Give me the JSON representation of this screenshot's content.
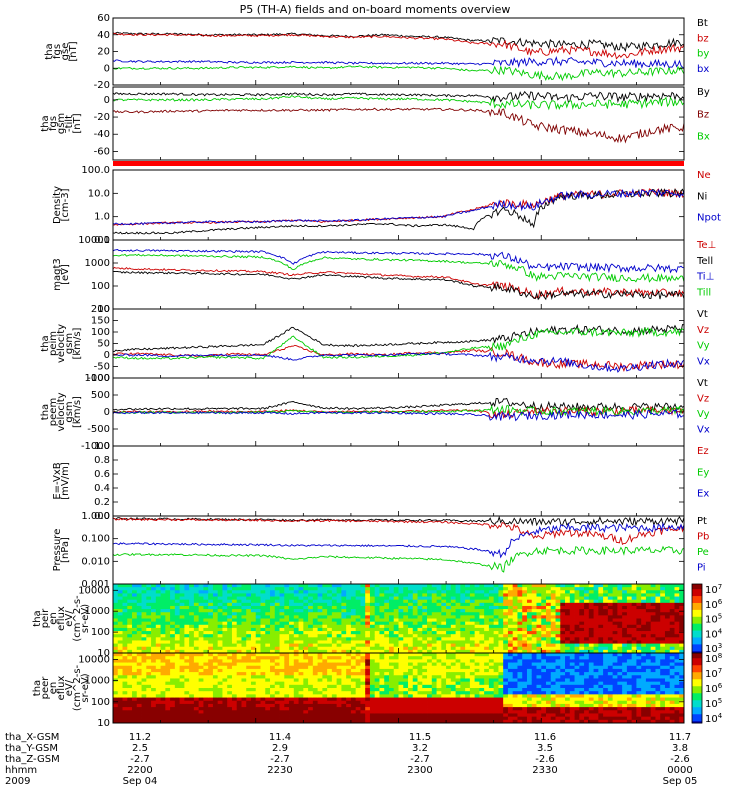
{
  "title": "P5 (TH-A) fields and on-board moments overview",
  "chart_data": [
    {
      "type": "line",
      "ylabel": [
        "tha",
        "fgs",
        "gse",
        "[nT]"
      ],
      "ylim": [
        -20,
        60
      ],
      "ticks": [
        "60",
        "40",
        "20",
        "0",
        "-20"
      ],
      "tick_values": [
        60,
        40,
        20,
        0,
        -20
      ],
      "series": [
        {
          "name": "Bt",
          "color": "#000000",
          "values": [
            42,
            41,
            41,
            40,
            40,
            40,
            41,
            39,
            38,
            40,
            38,
            37,
            33,
            33,
            30,
            28,
            29,
            25,
            28,
            32
          ]
        },
        {
          "name": "bz",
          "color": "#cc0000",
          "values": [
            41,
            40,
            40,
            39,
            39,
            39,
            40,
            38,
            37,
            38,
            36,
            35,
            30,
            29,
            18,
            22,
            20,
            15,
            22,
            25
          ]
        },
        {
          "name": "by",
          "color": "#00cc00",
          "values": [
            0,
            0,
            0,
            0,
            1,
            1,
            2,
            0,
            2,
            1,
            1,
            0,
            -3,
            -2,
            -8,
            -10,
            -5,
            -6,
            -4,
            -2
          ]
        },
        {
          "name": "bx",
          "color": "#0000cc",
          "values": [
            9,
            8,
            8,
            8,
            7,
            7,
            7,
            7,
            6,
            6,
            6,
            6,
            5,
            6,
            8,
            8,
            7,
            6,
            5,
            5
          ]
        }
      ]
    },
    {
      "type": "line",
      "ylabel": [
        "tha",
        "fgs",
        "gsm",
        "-tilt",
        "[nT]"
      ],
      "ylim": [
        -70,
        15
      ],
      "ticks": [
        "0",
        "-20",
        "-40",
        "-60"
      ],
      "tick_values": [
        0,
        -20,
        -40,
        -60
      ],
      "series": [
        {
          "name": "By",
          "color": "#000000",
          "values": [
            7,
            7,
            7,
            6,
            6,
            6,
            7,
            6,
            7,
            6,
            6,
            5,
            5,
            3,
            5,
            2,
            5,
            3,
            5,
            5
          ]
        },
        {
          "name": "Bz",
          "color": "#800000",
          "values": [
            -14,
            -14,
            -13,
            -13,
            -12,
            -12,
            -12,
            -12,
            -11,
            -11,
            -11,
            -11,
            -12,
            -15,
            -30,
            -35,
            -40,
            -45,
            -35,
            -32
          ]
        },
        {
          "name": "Bx",
          "color": "#00cc00",
          "values": [
            0,
            0,
            0,
            0,
            1,
            1,
            4,
            1,
            2,
            1,
            1,
            0,
            -2,
            -5,
            -6,
            -6,
            -5,
            -5,
            -3,
            -2
          ]
        }
      ]
    },
    {
      "type": "line",
      "ylabel": [
        "Density",
        "[cm-3]"
      ],
      "log": true,
      "ylim": [
        0.1,
        100
      ],
      "ticks": [
        "100.0",
        "10.0",
        "1.0",
        "0.1"
      ],
      "tick_values": [
        100,
        10,
        1,
        0.1
      ],
      "series": [
        {
          "name": "Ne",
          "color": "#cc0000",
          "values": [
            0.45,
            0.5,
            0.55,
            0.55,
            0.6,
            0.6,
            0.7,
            0.6,
            0.7,
            0.8,
            0.9,
            1.0,
            2.0,
            4.0,
            3.0,
            8,
            9,
            10,
            11,
            10
          ]
        },
        {
          "name": "Ni",
          "color": "#000000",
          "values": [
            0.2,
            0.2,
            0.2,
            0.25,
            0.3,
            0.35,
            0.4,
            0.4,
            0.45,
            0.5,
            0.4,
            0.45,
            0.3,
            2.0,
            0.3,
            8,
            8,
            9,
            10,
            10
          ]
        },
        {
          "name": "Npot",
          "color": "#0000cc",
          "values": [
            0.5,
            0.5,
            0.55,
            0.6,
            0.6,
            0.6,
            0.7,
            0.65,
            0.7,
            0.8,
            0.9,
            1.0,
            1.8,
            3.5,
            2.5,
            8,
            9,
            10,
            11,
            10
          ]
        }
      ]
    },
    {
      "type": "line",
      "ylabel": [
        "magt3",
        "[eV]"
      ],
      "log": true,
      "ylim": [
        10,
        10000
      ],
      "ticks": [
        "10000",
        "1000",
        "100",
        "10"
      ],
      "tick_values": [
        10000,
        1000,
        100,
        10
      ],
      "series": [
        {
          "name": "Te⊥",
          "color": "#cc0000",
          "values": [
            600,
            550,
            500,
            480,
            450,
            420,
            300,
            400,
            350,
            300,
            260,
            250,
            120,
            100,
            40,
            60,
            55,
            55,
            50,
            50
          ]
        },
        {
          "name": "Tell",
          "color": "#000000",
          "values": [
            400,
            380,
            370,
            350,
            330,
            320,
            200,
            300,
            260,
            220,
            200,
            190,
            100,
            80,
            35,
            45,
            45,
            45,
            40,
            40
          ]
        },
        {
          "name": "Ti⊥",
          "color": "#0000cc",
          "values": [
            3500,
            3500,
            3400,
            3300,
            3200,
            3100,
            900,
            3000,
            2800,
            2700,
            2600,
            2500,
            2500,
            2000,
            600,
            700,
            650,
            600,
            600,
            550
          ]
        },
        {
          "name": "Till",
          "color": "#00cc00",
          "values": [
            2200,
            2200,
            2100,
            2000,
            1900,
            1800,
            500,
            1700,
            1500,
            1400,
            1300,
            1200,
            1000,
            900,
            250,
            280,
            250,
            230,
            220,
            200
          ]
        }
      ]
    },
    {
      "type": "line",
      "ylabel": [
        "tha",
        "peim",
        "velocity",
        "gsm",
        "[km/s]"
      ],
      "ylim": [
        -100,
        200
      ],
      "ticks": [
        "200",
        "150",
        "100",
        "50",
        "0",
        "-50",
        "-100"
      ],
      "tick_values": [
        200,
        150,
        100,
        50,
        0,
        -50,
        -100
      ],
      "series": [
        {
          "name": "Vt",
          "color": "#000000",
          "values": [
            20,
            25,
            30,
            35,
            40,
            45,
            120,
            45,
            40,
            45,
            50,
            55,
            60,
            70,
            100,
            110,
            110,
            105,
            110,
            115
          ]
        },
        {
          "name": "Vz",
          "color": "#cc0000",
          "values": [
            5,
            5,
            0,
            -5,
            5,
            0,
            40,
            0,
            5,
            0,
            10,
            10,
            20,
            10,
            -30,
            -40,
            -40,
            -50,
            -40,
            -40
          ]
        },
        {
          "name": "Vy",
          "color": "#00cc00",
          "values": [
            -10,
            -15,
            -15,
            -10,
            -10,
            -15,
            80,
            -10,
            -10,
            -5,
            0,
            10,
            30,
            40,
            90,
            100,
            100,
            95,
            100,
            100
          ]
        },
        {
          "name": "Vx",
          "color": "#0000cc",
          "values": [
            0,
            0,
            -5,
            0,
            0,
            0,
            -20,
            0,
            0,
            0,
            5,
            5,
            0,
            -10,
            -20,
            -30,
            -50,
            -60,
            -40,
            -40
          ]
        }
      ]
    },
    {
      "type": "line",
      "ylabel": [
        "tha",
        "peem",
        "velocity",
        "gsm",
        "[km/s]"
      ],
      "ylim": [
        -1000,
        1000
      ],
      "ticks": [
        "1000",
        "500",
        "0",
        "-500",
        "-1000"
      ],
      "tick_values": [
        1000,
        500,
        0,
        -500,
        -1000
      ],
      "series": [
        {
          "name": "Vt",
          "color": "#000000",
          "values": [
            80,
            90,
            100,
            90,
            100,
            100,
            300,
            120,
            100,
            120,
            150,
            200,
            250,
            300,
            180,
            150,
            150,
            150,
            150,
            160
          ]
        },
        {
          "name": "Vz",
          "color": "#cc0000",
          "values": [
            0,
            10,
            0,
            20,
            10,
            10,
            50,
            0,
            20,
            10,
            20,
            40,
            50,
            -100,
            40,
            30,
            20,
            30,
            40,
            30
          ]
        },
        {
          "name": "Vy",
          "color": "#00cc00",
          "values": [
            -20,
            -10,
            -20,
            -10,
            -20,
            -10,
            30,
            -10,
            -10,
            0,
            10,
            20,
            40,
            80,
            20,
            20,
            30,
            20,
            30,
            40
          ]
        },
        {
          "name": "Vx",
          "color": "#0000cc",
          "values": [
            -30,
            -20,
            -30,
            -20,
            -30,
            -20,
            -50,
            -20,
            -30,
            -20,
            -40,
            -50,
            -80,
            -150,
            -100,
            -80,
            -70,
            -90,
            -60,
            -50
          ]
        }
      ]
    },
    {
      "type": "line",
      "ylabel": [
        "E=-VxB",
        "[mV/m]"
      ],
      "ylim": [
        0,
        1
      ],
      "ticks": [
        "1.0",
        "0.8",
        "0.6",
        "0.4",
        "0.2",
        "0.0"
      ],
      "tick_values": [
        1.0,
        0.8,
        0.6,
        0.4,
        0.2,
        0.0
      ],
      "series": [
        {
          "name": "Ez",
          "color": "#cc0000",
          "values": []
        },
        {
          "name": "Ey",
          "color": "#00cc00",
          "values": []
        },
        {
          "name": "Ex",
          "color": "#0000cc",
          "values": []
        }
      ]
    },
    {
      "type": "line",
      "ylabel": [
        "Pressure",
        "[nPa]"
      ],
      "log": true,
      "ylim": [
        0.001,
        1.0
      ],
      "ticks": [
        "1.000",
        "0.100",
        "0.010",
        "0.001"
      ],
      "tick_values": [
        1.0,
        0.1,
        0.01,
        0.001
      ],
      "series": [
        {
          "name": "Pt",
          "color": "#000000",
          "values": [
            0.78,
            0.76,
            0.74,
            0.72,
            0.7,
            0.7,
            0.65,
            0.68,
            0.67,
            0.66,
            0.65,
            0.64,
            0.6,
            0.6,
            0.55,
            0.55,
            0.6,
            0.58,
            0.6,
            0.62
          ]
        },
        {
          "name": "Pb",
          "color": "#cc0000",
          "values": [
            0.72,
            0.7,
            0.69,
            0.67,
            0.66,
            0.65,
            0.6,
            0.62,
            0.6,
            0.58,
            0.56,
            0.54,
            0.45,
            0.4,
            0.1,
            0.2,
            0.15,
            0.08,
            0.2,
            0.3
          ]
        },
        {
          "name": "Pe",
          "color": "#00cc00",
          "values": [
            0.02,
            0.02,
            0.02,
            0.019,
            0.018,
            0.018,
            0.012,
            0.016,
            0.015,
            0.014,
            0.013,
            0.012,
            0.008,
            0.005,
            0.03,
            0.03,
            0.03,
            0.03,
            0.03,
            0.03
          ]
        },
        {
          "name": "Pi",
          "color": "#0000cc",
          "values": [
            0.06,
            0.06,
            0.058,
            0.056,
            0.055,
            0.054,
            0.05,
            0.05,
            0.05,
            0.048,
            0.047,
            0.045,
            0.035,
            0.02,
            0.2,
            0.3,
            0.3,
            0.3,
            0.3,
            0.35
          ]
        }
      ]
    },
    {
      "type": "heatmap",
      "ylabel": [
        "tha",
        "peir",
        "en",
        "eflux",
        "eV/",
        "(cm^2-s-",
        "sr-eV)"
      ],
      "log": true,
      "ylim": [
        10,
        20000
      ],
      "ticks": [
        "10000",
        "1000",
        "100",
        "10"
      ],
      "tick_values": [
        10000,
        1000,
        100,
        10
      ],
      "colorbar": {
        "ticks": [
          "10^7",
          "10^6",
          "10^5",
          "10^4",
          "10^3"
        ]
      }
    },
    {
      "type": "heatmap",
      "ylabel": [
        "tha",
        "peer",
        "en",
        "eflux",
        "eV/",
        "(cm^2-s-",
        "sr-eV)"
      ],
      "log": true,
      "ylim": [
        10,
        20000
      ],
      "ticks": [
        "10000",
        "1000",
        "100",
        "10"
      ],
      "tick_values": [
        10000,
        1000,
        100,
        10
      ],
      "colorbar": {
        "ticks": [
          "10^8",
          "10^7",
          "10^6",
          "10^5",
          "10^4"
        ]
      }
    }
  ],
  "xaxis": {
    "rows": [
      {
        "label": "tha_X-GSM",
        "values": [
          "11.2",
          "11.4",
          "11.5",
          "11.6",
          "11.6",
          "11.7"
        ]
      },
      {
        "label": "tha_Y-GSM",
        "values": [
          "2.5",
          "2.9",
          "3.2",
          "3.5",
          "3.5",
          "3.8"
        ]
      },
      {
        "label": "tha_Z-GSM",
        "values": [
          "-2.7",
          "-2.7",
          "-2.7",
          "-2.6",
          "-2.6",
          "-2.6"
        ]
      },
      {
        "label": "hhmm",
        "values": [
          "2200",
          "2230",
          "2300",
          "2330",
          "2330",
          "0000"
        ]
      },
      {
        "label": "2009",
        "values": [
          "Sep 04",
          "",
          "",
          "",
          "",
          "Sep 05"
        ]
      }
    ],
    "major_ticks": [
      "2200",
      "2230",
      "2300",
      "2330",
      "0000"
    ]
  }
}
